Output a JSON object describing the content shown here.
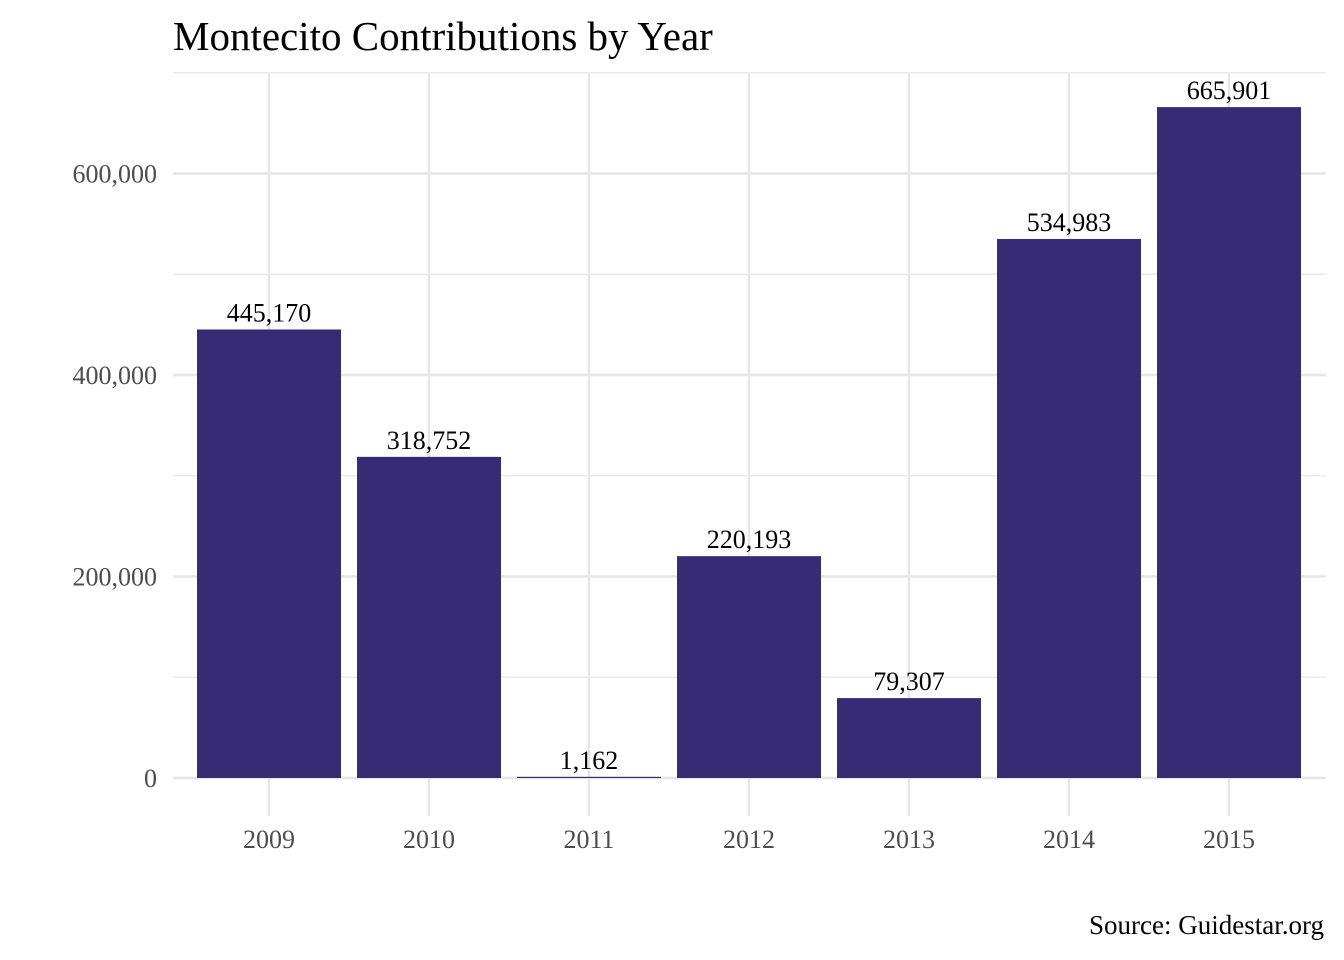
{
  "chart_data": {
    "type": "bar",
    "title": "Montecito Contributions by Year",
    "caption": "Source: Guidestar.org",
    "xlabel": "",
    "ylabel": "",
    "categories": [
      "2009",
      "2010",
      "2011",
      "2012",
      "2013",
      "2014",
      "2015"
    ],
    "values": [
      445170,
      318752,
      1162,
      220193,
      79307,
      534983,
      665901
    ],
    "value_labels": [
      "445,170",
      "318,752",
      "1,162",
      "220,193",
      "79,307",
      "534,983",
      "665,901"
    ],
    "y_ticks": [
      0,
      200000,
      400000,
      600000
    ],
    "y_tick_labels": [
      "0",
      "200,000",
      "400,000",
      "600,000"
    ],
    "ylim": [
      0,
      700000
    ],
    "grid": true,
    "legend": "none",
    "bar_color": "#372B75"
  }
}
